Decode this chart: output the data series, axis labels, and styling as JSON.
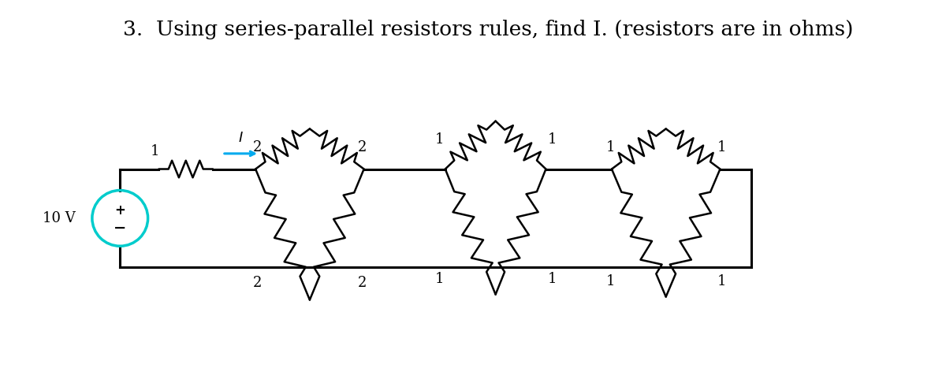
{
  "title": "3.  Using series-parallel resistors rules, find I. (resistors are in ohms)",
  "title_fontsize": 19,
  "background": "#ffffff",
  "lw_wire": 2.2,
  "lw_res": 1.8,
  "battery_color": "#00CCCC",
  "battery_lw": 2.5,
  "arrow_color": "#00AAEE",
  "res_spike_amp": 0.115,
  "res_n_spikes": 7,
  "label_fontsize": 13,
  "current_label": "I",
  "voltage_label": "10 V",
  "plus_label": "+",
  "minus_label": "−"
}
